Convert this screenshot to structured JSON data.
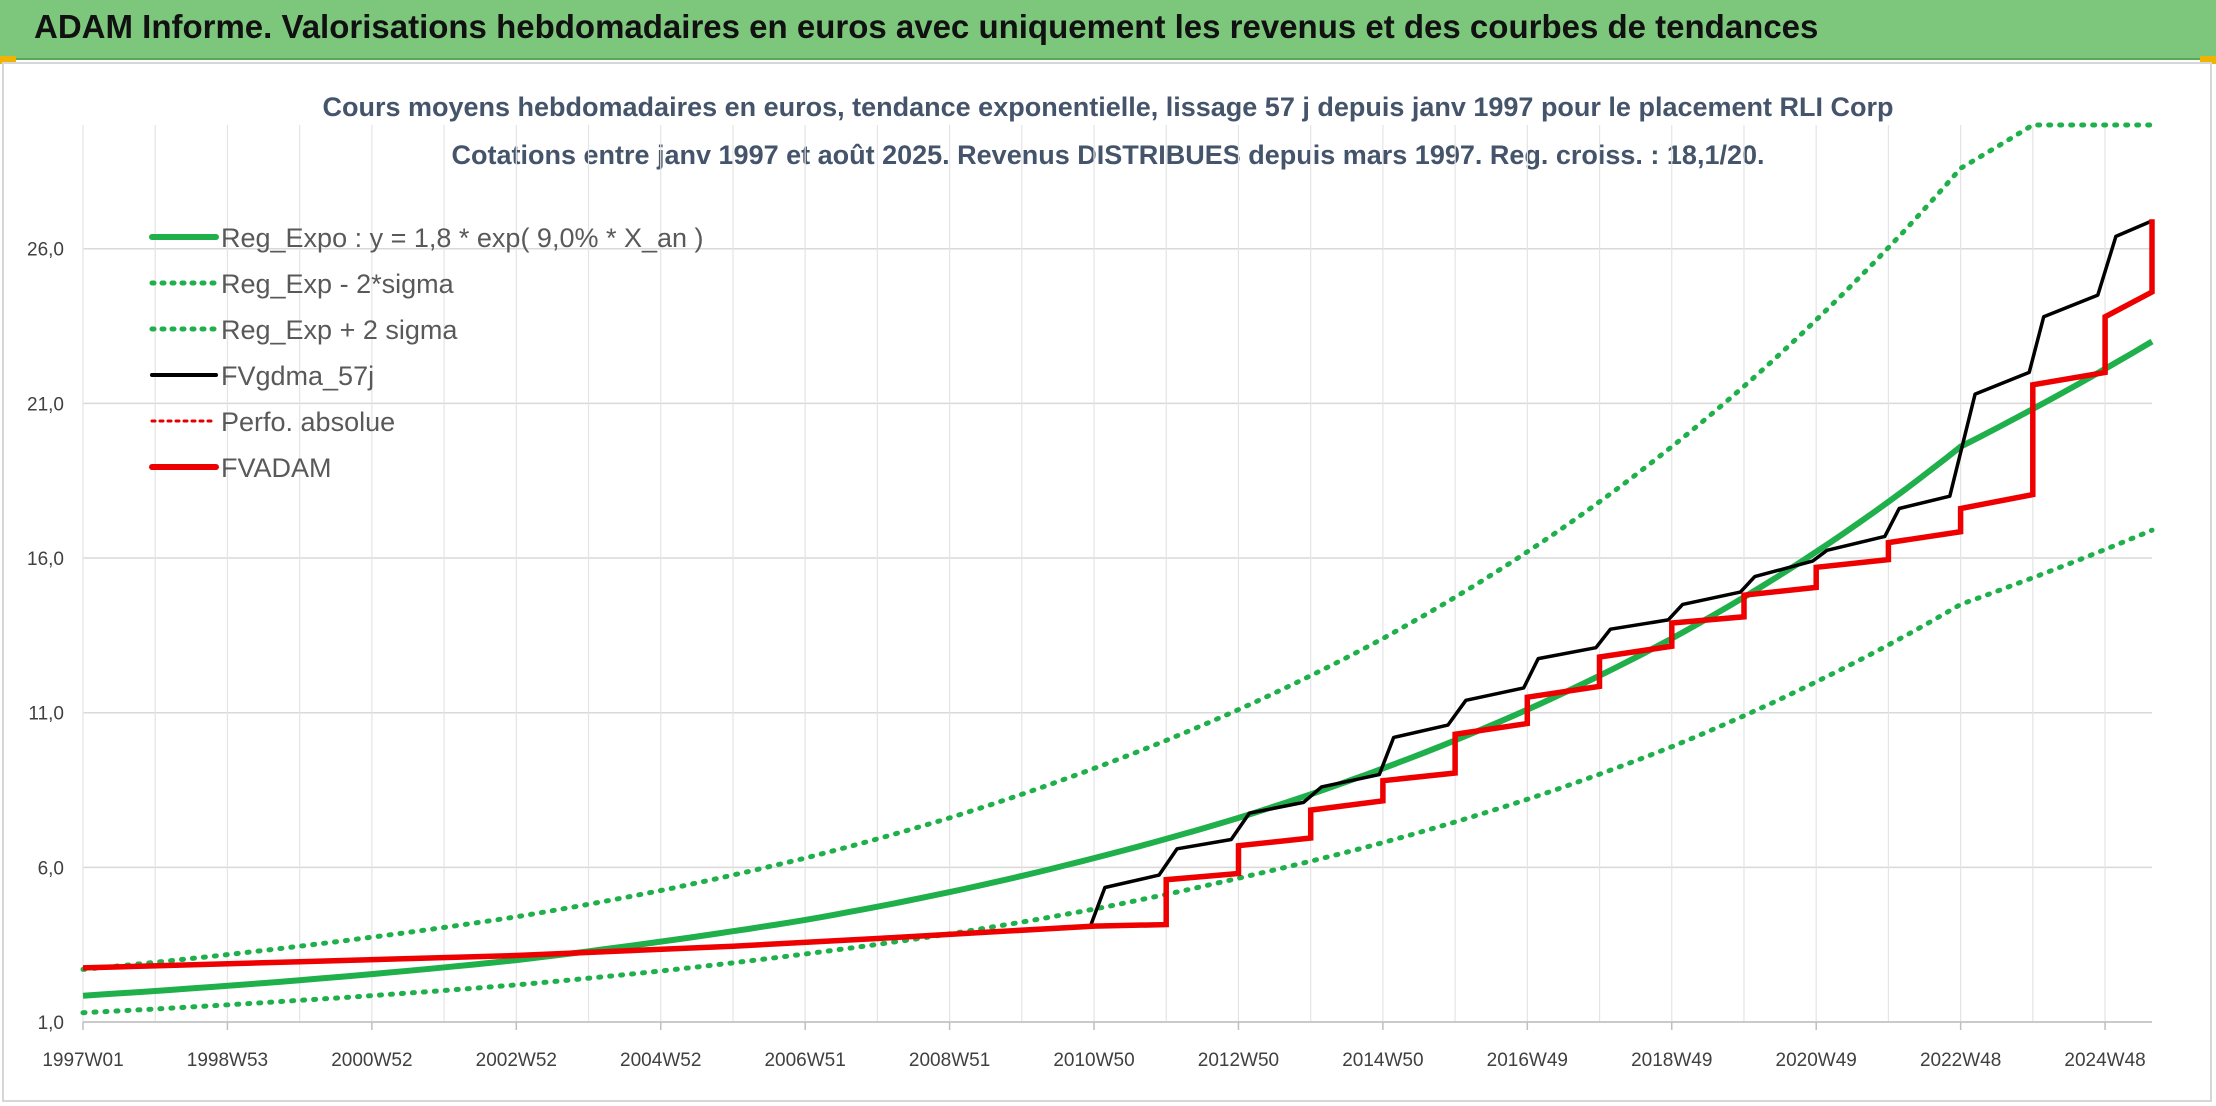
{
  "header": {
    "title": "ADAM Informe. Valorisations hebdomadaires en euros avec uniquement les revenus et des courbes de tendances"
  },
  "colors": {
    "header_bg": "#7dc77d",
    "reg_expo": "#1fb04c",
    "sigma": "#1fb04c",
    "fvgdma": "#000000",
    "perfo": "#e00000",
    "fvadam": "#ee0000"
  },
  "chart_data": {
    "type": "line",
    "title": "Cours moyens hebdomadaires en euros, tendance exponentielle, lissage 57 j depuis janv 1997 pour le placement RLI Corp",
    "subtitle": "Cotations entre janv 1997 et août 2025. Revenus DISTRIBUES depuis mars 1997. Reg. croiss. : 18,1/20.",
    "xlabel": "",
    "ylabel": "",
    "x_range": [
      1997.0,
      2025.65
    ],
    "ylim": [
      1.0,
      30.0
    ],
    "y_ticks": [
      "1,0",
      "6,0",
      "11,0",
      "16,0",
      "21,0",
      "26,0"
    ],
    "x_ticks": [
      "1997W01",
      "1998W53",
      "2000W52",
      "2002W52",
      "2004W52",
      "2006W51",
      "2008W51",
      "2010W50",
      "2012W50",
      "2014W50",
      "2016W49",
      "2018W49",
      "2020W49",
      "2022W48",
      "2024W48"
    ],
    "grid": true,
    "legend_position": "top-left",
    "legend": [
      {
        "label": "Reg_Expo : y = 1,8 * exp( 9,0% *  X_an )",
        "style": "solid-green"
      },
      {
        "label": "Reg_Exp - 2*sigma",
        "style": "dotted-green"
      },
      {
        "label": "Reg_Exp + 2 sigma",
        "style": "dotted-green"
      },
      {
        "label": "FVgdma_57j",
        "style": "solid-black"
      },
      {
        "label": "Perfo. absolue",
        "style": "dotted-red"
      },
      {
        "label": "FVADAM",
        "style": "solid-red"
      }
    ],
    "series": [
      {
        "name": "Reg_Expo : y = 1,8 * exp( 9,0% *  X_an )",
        "x": [
          1997.0,
          2000.0,
          2003.0,
          2005.0,
          2007.0,
          2009.0,
          2011.0,
          2013.0,
          2015.0,
          2017.0,
          2019.0,
          2021.0,
          2023.0,
          2025.65
        ],
        "values": [
          1.85,
          2.35,
          3.0,
          3.6,
          4.3,
          5.2,
          6.3,
          7.6,
          9.2,
          11.1,
          13.4,
          16.2,
          19.6,
          23.0
        ]
      },
      {
        "name": "Reg_Exp - 2*sigma",
        "x": [
          1997.0,
          2000.0,
          2003.0,
          2005.0,
          2007.0,
          2009.0,
          2011.0,
          2013.0,
          2015.0,
          2017.0,
          2019.0,
          2021.0,
          2023.0,
          2025.65
        ],
        "values": [
          1.3,
          1.7,
          2.2,
          2.65,
          3.2,
          3.85,
          4.65,
          5.65,
          6.8,
          8.2,
          9.9,
          12.0,
          14.5,
          16.9
        ]
      },
      {
        "name": "Reg_Exp + 2 sigma",
        "x": [
          1997.0,
          2000.0,
          2003.0,
          2005.0,
          2007.0,
          2009.0,
          2011.0,
          2013.0,
          2015.0,
          2017.0,
          2019.0,
          2021.0,
          2023.0,
          2024.0,
          2025.65
        ],
        "values": [
          2.7,
          3.45,
          4.4,
          5.25,
          6.3,
          7.6,
          9.2,
          11.1,
          13.4,
          16.2,
          19.6,
          23.7,
          28.6,
          30.0,
          30.0
        ]
      },
      {
        "name": "FVgdma_57j",
        "x": [
          1997.0,
          2000.0,
          2003.0,
          2006.0,
          2008.0,
          2009.5,
          2010.95,
          2011.15,
          2011.9,
          2012.15,
          2012.9,
          2013.15,
          2013.9,
          2014.15,
          2014.95,
          2015.15,
          2015.9,
          2016.15,
          2016.95,
          2017.15,
          2017.95,
          2018.15,
          2018.95,
          2019.15,
          2019.95,
          2020.15,
          2020.95,
          2021.15,
          2021.95,
          2022.15,
          2022.85,
          2023.2,
          2023.95,
          2024.15,
          2024.9,
          2025.15,
          2025.65
        ],
        "values": [
          2.75,
          2.95,
          3.15,
          3.45,
          3.7,
          3.9,
          4.1,
          5.35,
          5.75,
          6.6,
          6.9,
          7.75,
          8.1,
          8.6,
          9.0,
          10.2,
          10.6,
          11.4,
          11.8,
          12.75,
          13.1,
          13.7,
          14.0,
          14.5,
          14.9,
          15.4,
          15.9,
          16.25,
          16.7,
          17.6,
          18.0,
          21.3,
          22.0,
          23.8,
          24.5,
          26.4,
          26.9
        ]
      },
      {
        "name": "FVADAM",
        "steps": true,
        "x": [
          1997.0,
          2000.0,
          2003.0,
          2006.0,
          2008.0,
          2009.5,
          2011.0,
          2012.0,
          2013.0,
          2014.0,
          2015.0,
          2016.0,
          2017.0,
          2018.0,
          2019.0,
          2020.0,
          2021.0,
          2022.0,
          2023.0,
          2024.0,
          2025.0,
          2025.65
        ],
        "values": [
          2.75,
          2.95,
          3.15,
          3.45,
          3.7,
          3.9,
          4.1,
          5.6,
          6.7,
          7.85,
          8.8,
          10.3,
          11.5,
          12.8,
          13.9,
          14.8,
          15.7,
          16.5,
          17.6,
          21.6,
          23.8,
          26.8
        ],
        "segment_end_values": [
          2.95,
          3.15,
          3.45,
          3.7,
          3.9,
          4.1,
          4.15,
          5.8,
          6.95,
          8.15,
          9.05,
          10.65,
          11.85,
          13.15,
          14.1,
          15.05,
          15.95,
          16.85,
          18.05,
          22.0,
          24.6,
          26.95
        ]
      },
      {
        "name": "Perfo. absolue",
        "x": [
          1997.0,
          2025.65
        ],
        "values": [
          2.75,
          26.9
        ],
        "hidden_under": "FVADAM"
      }
    ]
  }
}
